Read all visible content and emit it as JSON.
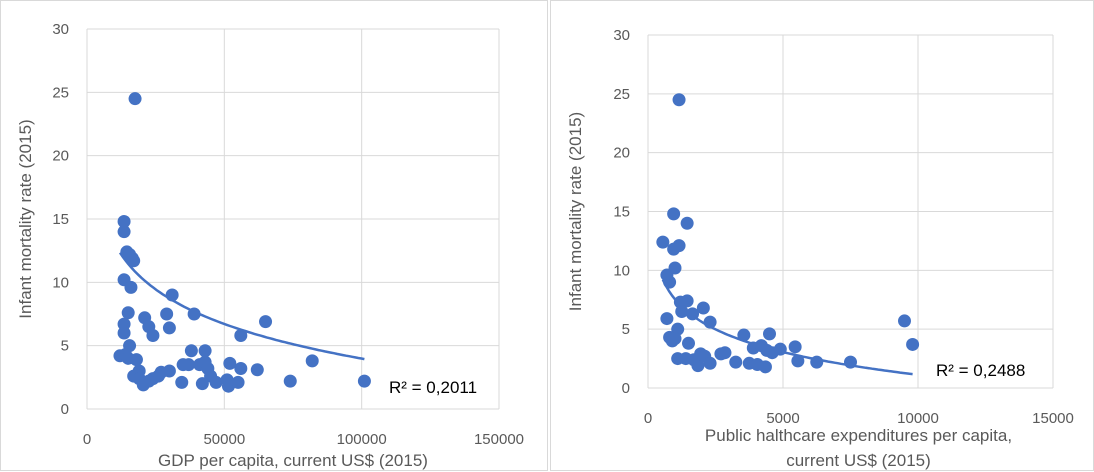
{
  "colors": {
    "marker": "#4472c4",
    "trendline": "#4472c4",
    "grid": "#d9d9d9",
    "text": "#595959"
  },
  "chart_data": [
    {
      "type": "scatter",
      "title": "",
      "xlabel": "GDP per capita, current US$ (2015)",
      "ylabel": "Infant mortality rate (2015)",
      "xlim": [
        0,
        150000
      ],
      "ylim": [
        0,
        30
      ],
      "xticks": [
        "0",
        "50000",
        "100000",
        "150000"
      ],
      "yticks": [
        "0",
        "5",
        "10",
        "15",
        "20",
        "25",
        "30"
      ],
      "grid": "vertical and horizontal",
      "legend": "none",
      "trendline": {
        "type": "logarithmic",
        "a": 49.35,
        "b": -3.9407,
        "x_range": [
          12000,
          101000
        ]
      },
      "r_squared_label": "R² = 0,2011",
      "series": [
        {
          "points": [
            [
              17500,
              24.5
            ],
            [
              13500,
              14.8
            ],
            [
              13500,
              14.0
            ],
            [
              14500,
              12.4
            ],
            [
              15500,
              12.2
            ],
            [
              16500,
              11.9
            ],
            [
              17000,
              11.7
            ],
            [
              13500,
              10.2
            ],
            [
              16000,
              9.6
            ],
            [
              31000,
              9.0
            ],
            [
              15000,
              7.6
            ],
            [
              29000,
              7.5
            ],
            [
              39000,
              7.5
            ],
            [
              21000,
              7.2
            ],
            [
              65000,
              6.9
            ],
            [
              13500,
              6.7
            ],
            [
              22500,
              6.5
            ],
            [
              30000,
              6.4
            ],
            [
              13500,
              6.0
            ],
            [
              24000,
              5.8
            ],
            [
              56000,
              5.8
            ],
            [
              15500,
              5.0
            ],
            [
              38000,
              4.6
            ],
            [
              43000,
              4.6
            ],
            [
              12000,
              4.2
            ],
            [
              14000,
              4.3
            ],
            [
              15000,
              4.0
            ],
            [
              18000,
              3.9
            ],
            [
              35000,
              3.5
            ],
            [
              37000,
              3.5
            ],
            [
              41000,
              3.5
            ],
            [
              43000,
              3.7
            ],
            [
              52000,
              3.6
            ],
            [
              44000,
              3.2
            ],
            [
              82000,
              3.8
            ],
            [
              56000,
              3.2
            ],
            [
              62000,
              3.1
            ],
            [
              19000,
              3.0
            ],
            [
              30000,
              3.0
            ],
            [
              27000,
              2.9
            ],
            [
              17000,
              2.6
            ],
            [
              24000,
              2.4
            ],
            [
              26000,
              2.6
            ],
            [
              45000,
              2.6
            ],
            [
              19000,
              2.4
            ],
            [
              20500,
              1.9
            ],
            [
              22500,
              2.2
            ],
            [
              34500,
              2.1
            ],
            [
              42000,
              2.0
            ],
            [
              47000,
              2.1
            ],
            [
              51000,
              2.3
            ],
            [
              51500,
              1.8
            ],
            [
              55000,
              2.1
            ],
            [
              74000,
              2.2
            ],
            [
              101000,
              2.2
            ]
          ]
        }
      ]
    },
    {
      "type": "scatter",
      "title": "",
      "xlabel": "Public halthcare expenditures per capita, current US$ (2015)",
      "xlabel_lines": [
        "Public halthcare expenditures per capita,",
        "current US$ (2015)"
      ],
      "ylabel": "Infant mortality rate (2015)",
      "xlim": [
        0,
        15000
      ],
      "ylim": [
        0,
        30
      ],
      "xticks": [
        "0",
        "5000",
        "10000",
        "15000"
      ],
      "yticks": [
        "0",
        "5",
        "10",
        "15",
        "20",
        "25",
        "30"
      ],
      "grid": "vertical and horizontal",
      "legend": "none",
      "trendline": {
        "type": "logarithmic",
        "a": 26.8,
        "b": -2.788,
        "x_range": [
          550,
          9800
        ]
      },
      "r_squared_label": "R² = 0,2488",
      "series": [
        {
          "points": [
            [
              1150,
              24.5
            ],
            [
              950,
              14.8
            ],
            [
              1450,
              14.0
            ],
            [
              550,
              12.4
            ],
            [
              1150,
              12.1
            ],
            [
              950,
              11.8
            ],
            [
              700,
              9.6
            ],
            [
              800,
              9.0
            ],
            [
              1000,
              10.2
            ],
            [
              1200,
              7.3
            ],
            [
              1450,
              7.4
            ],
            [
              1650,
              6.3
            ],
            [
              2050,
              6.8
            ],
            [
              1250,
              6.5
            ],
            [
              2300,
              5.6
            ],
            [
              700,
              5.9
            ],
            [
              1100,
              5.0
            ],
            [
              3550,
              4.5
            ],
            [
              4500,
              4.6
            ],
            [
              800,
              4.3
            ],
            [
              900,
              4.0
            ],
            [
              1000,
              4.2
            ],
            [
              1500,
              3.8
            ],
            [
              3900,
              3.4
            ],
            [
              4200,
              3.6
            ],
            [
              4400,
              3.2
            ],
            [
              4600,
              3.0
            ],
            [
              4900,
              3.3
            ],
            [
              5450,
              3.5
            ],
            [
              9500,
              5.7
            ],
            [
              9800,
              3.7
            ],
            [
              1100,
              2.5
            ],
            [
              1400,
              2.5
            ],
            [
              1700,
              2.4
            ],
            [
              1850,
              1.9
            ],
            [
              1950,
              2.9
            ],
            [
              2100,
              2.7
            ],
            [
              2300,
              2.1
            ],
            [
              2700,
              2.9
            ],
            [
              2850,
              3.0
            ],
            [
              3250,
              2.2
            ],
            [
              3750,
              2.1
            ],
            [
              4050,
              2.0
            ],
            [
              4350,
              1.8
            ],
            [
              5550,
              2.3
            ],
            [
              6250,
              2.2
            ],
            [
              7500,
              2.2
            ]
          ]
        }
      ]
    }
  ]
}
